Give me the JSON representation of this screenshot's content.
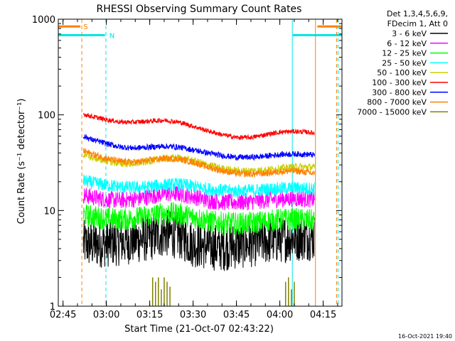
{
  "chart_data": {
    "type": "line",
    "title": "RHESSI Observing Summary Count Rates",
    "xlabel": "Start Time (21-Oct-07 02:43:22)",
    "ylabel": "Count Rate (s⁻¹ detector⁻¹)",
    "y_scale": "log",
    "ylim": [
      1,
      1000
    ],
    "xlim": [
      "02:43:22",
      "04:21:30"
    ],
    "x_tick_labels": [
      "02:45",
      "03:00",
      "03:15",
      "03:30",
      "03:45",
      "04:00",
      "04:15"
    ],
    "y_tick_labels": [
      "1",
      "10",
      "100",
      "1000"
    ],
    "legend_header": [
      "Det 1,3,4,5,6,9,",
      "FDecim 1, Att 0"
    ],
    "legend_position": "right",
    "timestamp": "16-Oct-2021 19:40",
    "flags": [
      {
        "label": "S",
        "color": "#ff8000"
      },
      {
        "label": "N",
        "color": "#00e5e5"
      }
    ],
    "flag_bars": [
      {
        "name": "S",
        "color": "#ff8000",
        "y": 840,
        "start": "02:43:22",
        "end": "02:51:00"
      },
      {
        "name": "S",
        "color": "#ff8000",
        "y": 840,
        "start": "04:13:00",
        "end": "04:21:30"
      },
      {
        "name": "N",
        "color": "#00e5e5",
        "y": 680,
        "start": "02:43:22",
        "end": "02:59:30"
      },
      {
        "name": "N",
        "color": "#00e5e5",
        "y": 680,
        "start": "04:04:30",
        "end": "04:21:30"
      }
    ],
    "vertical_markers": [
      {
        "time": "02:51:30",
        "color": "#ff8000",
        "style": "dashed"
      },
      {
        "time": "02:59:50",
        "color": "#00e5e5",
        "style": "dashed"
      },
      {
        "time": "04:04:20",
        "color": "#00e5e5",
        "style": "solid"
      },
      {
        "time": "04:12:20",
        "color": "#ff8000",
        "style": "solid"
      },
      {
        "time": "04:19:40",
        "color": "#ff8000",
        "style": "dashed"
      },
      {
        "time": "04:20:10",
        "color": "#00e5e5",
        "style": "dashed"
      }
    ],
    "series": [
      {
        "name": "3 - 6 keV",
        "color": "#000000",
        "x": [
          "02:52",
          "02:55",
          "03:00",
          "03:05",
          "03:10",
          "03:15",
          "03:20",
          "03:25",
          "03:30",
          "03:35",
          "03:40",
          "03:45",
          "03:50",
          "03:55",
          "04:00",
          "04:05",
          "04:10",
          "04:12"
        ],
        "y": [
          4.5,
          4.4,
          4.5,
          4.7,
          4.9,
          5.2,
          5.8,
          5.5,
          4.5,
          4.2,
          4.1,
          4.3,
          4.5,
          4.8,
          5.0,
          5.2,
          5.3,
          5.2
        ],
        "noise": 0.25
      },
      {
        "name": "6 - 12 keV",
        "color": "#ff00ff",
        "x": [
          "02:52",
          "02:55",
          "03:00",
          "03:05",
          "03:10",
          "03:15",
          "03:20",
          "03:25",
          "03:30",
          "03:35",
          "03:40",
          "03:45",
          "03:50",
          "03:55",
          "04:00",
          "04:05",
          "04:10",
          "04:12"
        ],
        "y": [
          14.5,
          13.8,
          13.0,
          12.8,
          13.2,
          14.0,
          15.0,
          15.0,
          14.0,
          12.8,
          12.3,
          12.2,
          12.4,
          12.8,
          13.2,
          13.4,
          13.2,
          13.0
        ],
        "noise": 0.09
      },
      {
        "name": "12 - 25 keV",
        "color": "#00ff00",
        "x": [
          "02:52",
          "02:55",
          "03:00",
          "03:05",
          "03:10",
          "03:15",
          "03:20",
          "03:25",
          "03:30",
          "03:35",
          "03:40",
          "03:45",
          "03:50",
          "03:55",
          "04:00",
          "04:05",
          "04:10",
          "04:12"
        ],
        "y": [
          9.0,
          8.7,
          8.2,
          8.0,
          8.3,
          8.8,
          9.4,
          9.2,
          8.5,
          7.8,
          7.4,
          7.3,
          7.4,
          7.7,
          8.0,
          8.1,
          7.9,
          7.8
        ],
        "noise": 0.12
      },
      {
        "name": "25 - 50 keV",
        "color": "#00ffff",
        "x": [
          "02:52",
          "02:55",
          "03:00",
          "03:05",
          "03:10",
          "03:15",
          "03:20",
          "03:25",
          "03:30",
          "03:35",
          "03:40",
          "03:45",
          "03:50",
          "03:55",
          "04:00",
          "04:05",
          "04:10",
          "04:12"
        ],
        "y": [
          20.5,
          19.5,
          18.5,
          17.6,
          17.3,
          17.8,
          18.5,
          18.8,
          18.0,
          16.8,
          16.2,
          16.0,
          16.2,
          16.6,
          17.0,
          17.2,
          17.0,
          16.9
        ],
        "noise": 0.07
      },
      {
        "name": "50 - 100 keV",
        "color": "#cccc00",
        "x": [
          "02:52",
          "02:55",
          "03:00",
          "03:05",
          "03:10",
          "03:15",
          "03:20",
          "03:25",
          "03:30",
          "03:35",
          "03:40",
          "03:45",
          "03:50",
          "03:55",
          "04:00",
          "04:05",
          "04:10",
          "04:12"
        ],
        "y": [
          38,
          36,
          33,
          31,
          31,
          33,
          35,
          35.5,
          33,
          30,
          27.5,
          26,
          26,
          26.5,
          27.5,
          28.5,
          28.5,
          28
        ],
        "noise": 0.04
      },
      {
        "name": "100 - 300 keV",
        "color": "#ff0000",
        "x": [
          "02:52",
          "02:55",
          "03:00",
          "03:05",
          "03:10",
          "03:15",
          "03:20",
          "03:25",
          "03:30",
          "03:35",
          "03:40",
          "03:45",
          "03:50",
          "03:55",
          "04:00",
          "04:05",
          "04:10",
          "04:12"
        ],
        "y": [
          102,
          96,
          89,
          84,
          84,
          86,
          88,
          84,
          76,
          68,
          62,
          58,
          58,
          62,
          66,
          67,
          66,
          64
        ],
        "noise": 0.025
      },
      {
        "name": "300 - 800 keV",
        "color": "#0000ff",
        "x": [
          "02:52",
          "02:55",
          "03:00",
          "03:05",
          "03:10",
          "03:15",
          "03:20",
          "03:25",
          "03:30",
          "03:35",
          "03:40",
          "03:45",
          "03:50",
          "03:55",
          "04:00",
          "04:05",
          "04:10",
          "04:12"
        ],
        "y": [
          60,
          55,
          50,
          46,
          45,
          46,
          47,
          46,
          43,
          40,
          37.5,
          36,
          36,
          37,
          38.5,
          39,
          38.5,
          38
        ],
        "noise": 0.03
      },
      {
        "name": "800 - 7000 keV",
        "color": "#ff8000",
        "x": [
          "02:52",
          "02:55",
          "03:00",
          "03:05",
          "03:10",
          "03:15",
          "03:20",
          "03:25",
          "03:30",
          "03:35",
          "03:40",
          "03:45",
          "03:50",
          "03:55",
          "04:00",
          "04:05",
          "04:10",
          "04:12"
        ],
        "y": [
          42,
          39,
          35,
          32.5,
          32,
          33.5,
          35,
          34.5,
          32,
          28.5,
          26,
          24.5,
          24,
          24.5,
          25.5,
          26,
          25,
          24
        ],
        "noise": 0.035
      },
      {
        "name": "7000 - 15000 keV",
        "color": "#808000",
        "x": [
          "03:16",
          "03:17",
          "03:18",
          "03:19",
          "03:20",
          "03:21",
          "03:22",
          "04:02",
          "04:03",
          "04:04",
          "04:05"
        ],
        "y": [
          2.0,
          1.8,
          2.0,
          1.5,
          2.0,
          1.8,
          1.6,
          1.8,
          2.0,
          1.5,
          1.8
        ],
        "noise": 0
      }
    ]
  }
}
